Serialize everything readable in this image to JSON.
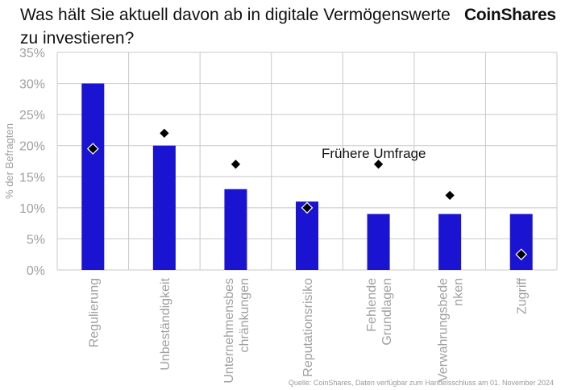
{
  "header": {
    "title": "Was hält Sie aktuell davon ab in digitale Vermögenswerte zu investieren?",
    "brand": "CoinShares"
  },
  "source": "Quelle: CoinShares, Daten verfügbar zum Handelsschluss am 01. November 2024",
  "colors": {
    "bar": "#1a13d1",
    "marker": "#000000",
    "grid": "#c8c8c8",
    "axis_text": "#a0a0a0"
  },
  "chart_data": {
    "type": "bar",
    "categories": [
      "Regulierung",
      "Unbeständigkeit",
      "Unternehmensbes chränkungen",
      "Reputationsrisiko",
      "Fehlende Grundlagen",
      "Verwahrungsbede nken",
      "Zugriff"
    ],
    "category_lines": [
      [
        "Regulierung"
      ],
      [
        "Unbeständigkeit"
      ],
      [
        "Unternehmensbes",
        "chränkungen"
      ],
      [
        "Reputationsrisiko"
      ],
      [
        "Fehlende",
        "Grundlagen"
      ],
      [
        "Verwahrungsbede",
        "nken"
      ],
      [
        "Zugriff"
      ]
    ],
    "series": [
      {
        "values": [
          30,
          20,
          13,
          11,
          9,
          9,
          9
        ]
      },
      {
        "name": "Frühere Umfrage",
        "values": [
          19.5,
          22,
          17,
          10,
          17,
          12,
          2.5
        ]
      }
    ],
    "annotation": "Frühere Umfrage",
    "ylabel": "% der Befragten",
    "ylim": [
      0,
      35
    ],
    "yticks": [
      "0%",
      "5%",
      "10%",
      "15%",
      "20%",
      "25%",
      "30%",
      "35%"
    ],
    "grid": true
  }
}
